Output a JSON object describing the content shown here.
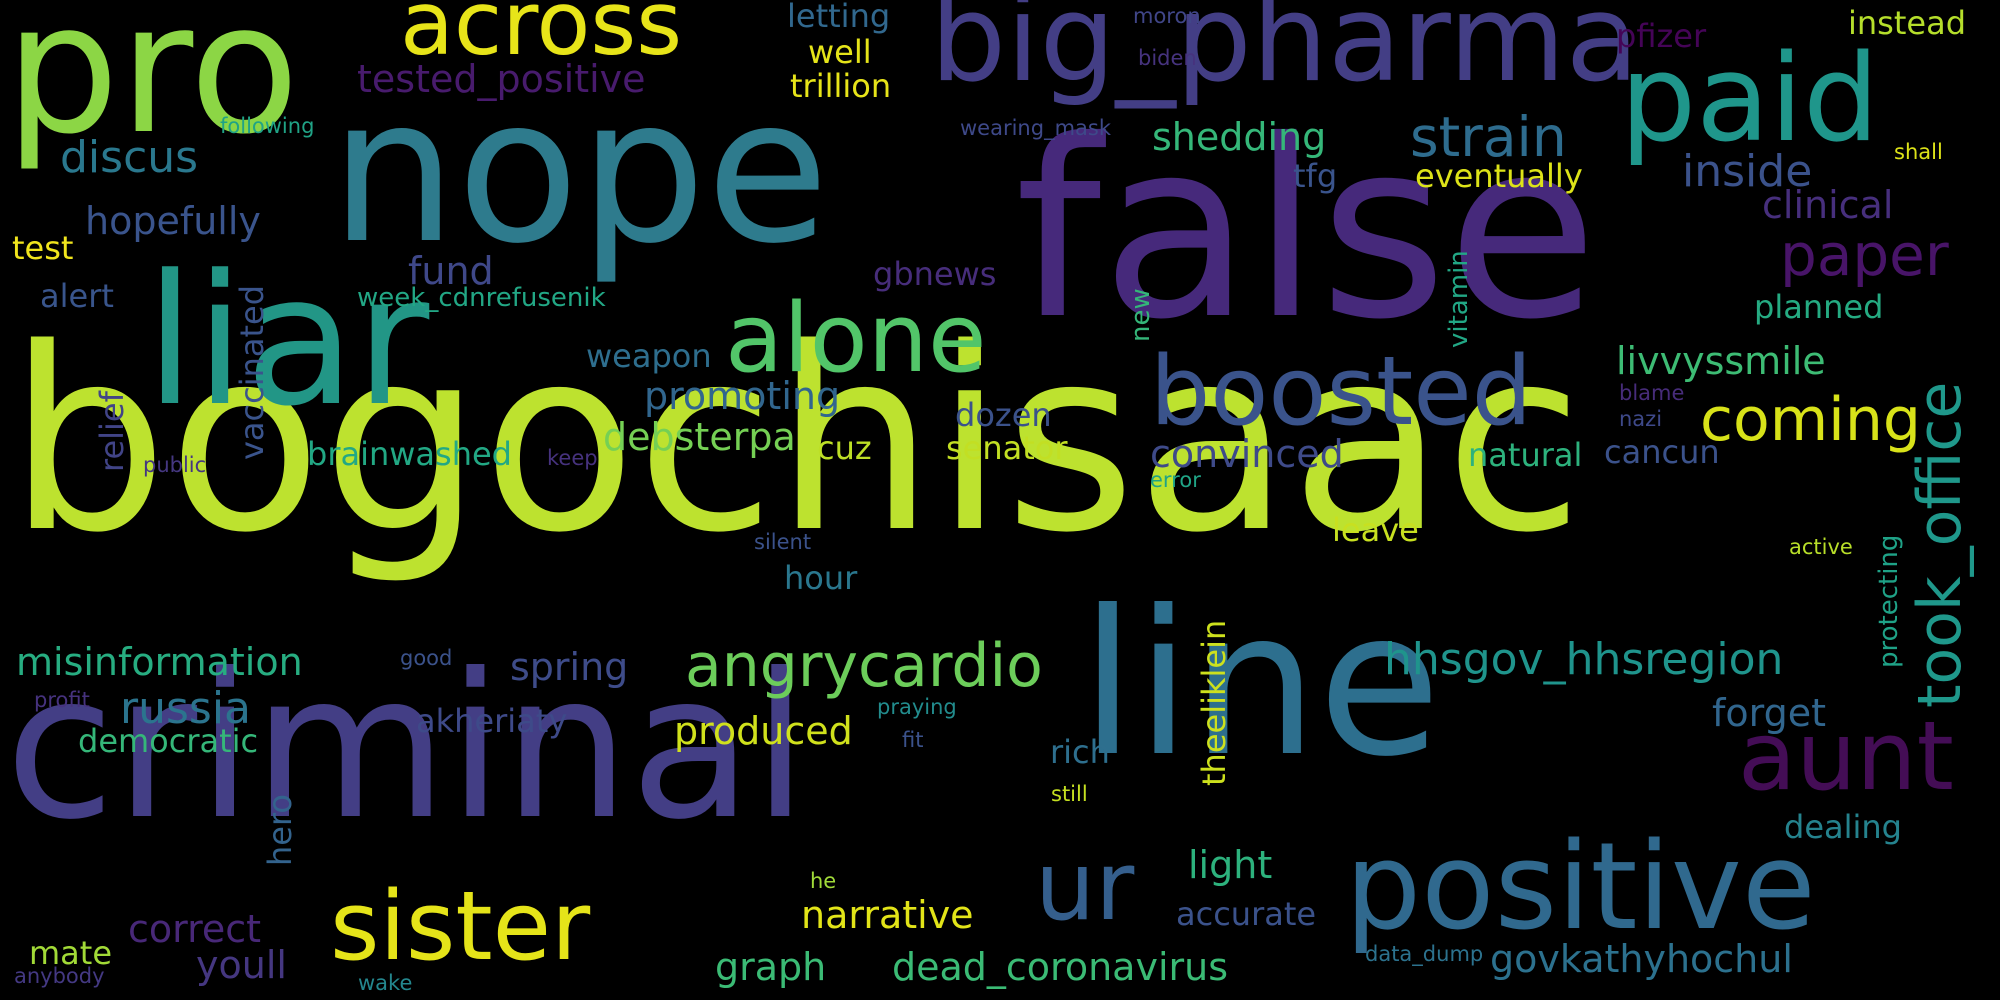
{
  "words": [
    {
      "text": "bogochisaac",
      "color": "#bde22f"
    },
    {
      "text": "false",
      "color": "#46297b"
    },
    {
      "text": "nope",
      "color": "#2e7b8d"
    },
    {
      "text": "criminal",
      "color": "#433e85"
    },
    {
      "text": "line",
      "color": "#2d6f8e"
    },
    {
      "text": "liar",
      "color": "#229686"
    },
    {
      "text": "pro",
      "color": "#8cd645"
    },
    {
      "text": "big_pharma",
      "color": "#433e85"
    },
    {
      "text": "positive",
      "color": "#30698e"
    },
    {
      "text": "paid",
      "color": "#1f968b"
    },
    {
      "text": "across",
      "color": "#e7e419"
    },
    {
      "text": "boosted",
      "color": "#3a538b"
    },
    {
      "text": "alone",
      "color": "#52c569"
    },
    {
      "text": "sister",
      "color": "#e5e419"
    },
    {
      "text": "aunt",
      "color": "#440d56"
    },
    {
      "text": "ur",
      "color": "#355f8d"
    },
    {
      "text": "angrycardio",
      "color": "#6ccd5a"
    },
    {
      "text": "coming",
      "color": "#d8e219"
    },
    {
      "text": "took_office",
      "color": "#1f988b"
    },
    {
      "text": "strain",
      "color": "#2e6c8e"
    },
    {
      "text": "hhsgov_hhsregion",
      "color": "#1f948c"
    },
    {
      "text": "paper",
      "color": "#481468"
    },
    {
      "text": "discus",
      "color": "#2a788e"
    },
    {
      "text": "russia",
      "color": "#2b748e"
    },
    {
      "text": "tested_positive",
      "color": "#481b6d"
    },
    {
      "text": "inside",
      "color": "#3b528b"
    },
    {
      "text": "misinformation",
      "color": "#27ad81"
    },
    {
      "text": "govkathyhochul",
      "color": "#2c718e"
    },
    {
      "text": "positive",
      "color": "#30698e"
    },
    {
      "text": "hopefully",
      "color": "#3a548c"
    },
    {
      "text": "shedding",
      "color": "#35b779"
    },
    {
      "text": "clinical",
      "color": "#472f7d"
    },
    {
      "text": "livvyssmile",
      "color": "#3dbc74"
    },
    {
      "text": "debsterpa",
      "color": "#75d054"
    },
    {
      "text": "convinced",
      "color": "#3e4a89"
    },
    {
      "text": "dead_coronavirus",
      "color": "#3bbb75"
    },
    {
      "text": "narrative",
      "color": "#e2e418"
    },
    {
      "text": "promoting",
      "color": "#31668e"
    },
    {
      "text": "produced",
      "color": "#d0e11c"
    },
    {
      "text": "spring",
      "color": "#3e4c8a"
    },
    {
      "text": "brainwashed",
      "color": "#22a884"
    },
    {
      "text": "correct",
      "color": "#482878"
    },
    {
      "text": "youll",
      "color": "#453781"
    },
    {
      "text": "eventually",
      "color": "#dde318"
    },
    {
      "text": "akheriaty",
      "color": "#3e4a89"
    },
    {
      "text": "forget",
      "color": "#31668e"
    },
    {
      "text": "senator",
      "color": "#c2df23"
    },
    {
      "text": "trillion",
      "color": "#e7e419"
    },
    {
      "text": "planned",
      "color": "#25ab82"
    },
    {
      "text": "natural",
      "color": "#2db27d"
    },
    {
      "text": "graph",
      "color": "#3bbb75"
    },
    {
      "text": "accurate",
      "color": "#3b528b"
    },
    {
      "text": "light",
      "color": "#2db27d"
    },
    {
      "text": "dealing",
      "color": "#25838e"
    },
    {
      "text": "cancun",
      "color": "#3b528b"
    },
    {
      "text": "democratic",
      "color": "#35b779"
    },
    {
      "text": "letting",
      "color": "#31688e"
    },
    {
      "text": "weapon",
      "color": "#2e6e8e"
    },
    {
      "text": "dozen",
      "color": "#3b528b"
    },
    {
      "text": "fund",
      "color": "#3f4889"
    },
    {
      "text": "mate",
      "color": "#a2da37"
    },
    {
      "text": "hour",
      "color": "#2a778e"
    },
    {
      "text": "leave",
      "color": "#c8e020"
    },
    {
      "text": "rich",
      "color": "#2e6f8e"
    },
    {
      "text": "gbnews",
      "color": "#472d7b"
    },
    {
      "text": "well",
      "color": "#e5e419"
    },
    {
      "text": "cuz",
      "color": "#bddf26"
    },
    {
      "text": "tfg",
      "color": "#3a548c"
    },
    {
      "text": "instead",
      "color": "#b5de2b"
    },
    {
      "text": "test",
      "color": "#f1e51d"
    },
    {
      "text": "alert",
      "color": "#39558c"
    },
    {
      "text": "pfizer",
      "color": "#450457"
    },
    {
      "text": "week_cdnrefusenik",
      "color": "#22a785"
    },
    {
      "text": "vaccinated",
      "color": "#3a548c"
    },
    {
      "text": "relief",
      "color": "#414487"
    },
    {
      "text": "new",
      "color": "#34b679"
    },
    {
      "text": "vitamin",
      "color": "#22a785"
    },
    {
      "text": "protecting",
      "color": "#1fa287"
    },
    {
      "text": "theeliklein",
      "color": "#cde11d"
    },
    {
      "text": "hero",
      "color": "#33638d"
    },
    {
      "text": "following",
      "color": "#20a386"
    },
    {
      "text": "moron",
      "color": "#404688"
    },
    {
      "text": "biden",
      "color": "#46337e"
    },
    {
      "text": "wearing_mask",
      "color": "#3e4989"
    },
    {
      "text": "shall",
      "color": "#dde318"
    },
    {
      "text": "blame",
      "color": "#472c7a"
    },
    {
      "text": "nazi",
      "color": "#3e4989"
    },
    {
      "text": "error",
      "color": "#20a486"
    },
    {
      "text": "keep",
      "color": "#46327e"
    },
    {
      "text": "public",
      "color": "#453781"
    },
    {
      "text": "silent",
      "color": "#3b528b"
    },
    {
      "text": "active",
      "color": "#b8de29"
    },
    {
      "text": "good",
      "color": "#3b528b"
    },
    {
      "text": "profit",
      "color": "#46327e"
    },
    {
      "text": "praying",
      "color": "#228c8d"
    },
    {
      "text": "fit",
      "color": "#3b528b"
    },
    {
      "text": "still",
      "color": "#c5e021"
    },
    {
      "text": "he",
      "color": "#a0da39"
    },
    {
      "text": "data_dump",
      "color": "#2c728e"
    },
    {
      "text": "anybody",
      "color": "#443983"
    },
    {
      "text": "wake",
      "color": "#24878e"
    }
  ]
}
